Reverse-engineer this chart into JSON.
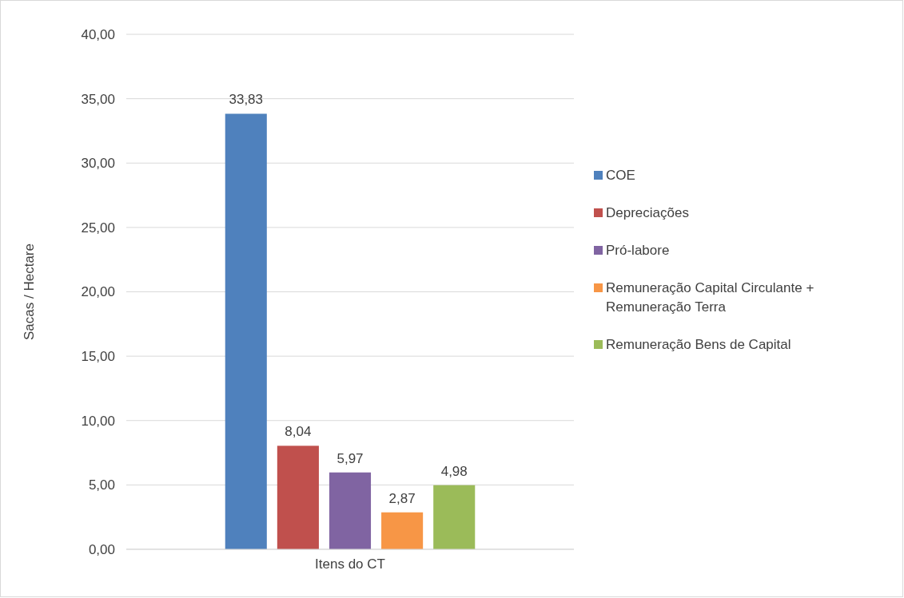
{
  "chart_data": {
    "type": "bar",
    "categories": [
      "Itens do CT"
    ],
    "ylabel": "Sacas / Hectare",
    "ylim": [
      0,
      40
    ],
    "yticks": [
      {
        "value": 0,
        "label": "0,00"
      },
      {
        "value": 5,
        "label": "5,00"
      },
      {
        "value": 10,
        "label": "10,00"
      },
      {
        "value": 15,
        "label": "15,00"
      },
      {
        "value": 20,
        "label": "20,00"
      },
      {
        "value": 25,
        "label": "25,00"
      },
      {
        "value": 30,
        "label": "30,00"
      },
      {
        "value": 35,
        "label": "35,00"
      },
      {
        "value": 40,
        "label": "40,00"
      }
    ],
    "grid": "y",
    "legend": "right",
    "series": [
      {
        "name": "COE",
        "color": "#4f81bd",
        "values": [
          33.83
        ],
        "value_labels": [
          "33,83"
        ]
      },
      {
        "name": "Depreciações",
        "color": "#c0504d",
        "values": [
          8.04
        ],
        "value_labels": [
          "8,04"
        ]
      },
      {
        "name": "Pró-labore",
        "color": "#8064a2",
        "values": [
          5.97
        ],
        "value_labels": [
          "5,97"
        ]
      },
      {
        "name": "Remuneração Capital Circulante + Remuneração Terra",
        "color": "#f79646",
        "values": [
          2.87
        ],
        "value_labels": [
          "2,87"
        ]
      },
      {
        "name": "Remuneração Bens de Capital",
        "color": "#9bbb59",
        "values": [
          4.98
        ],
        "value_labels": [
          "4,98"
        ]
      }
    ]
  }
}
